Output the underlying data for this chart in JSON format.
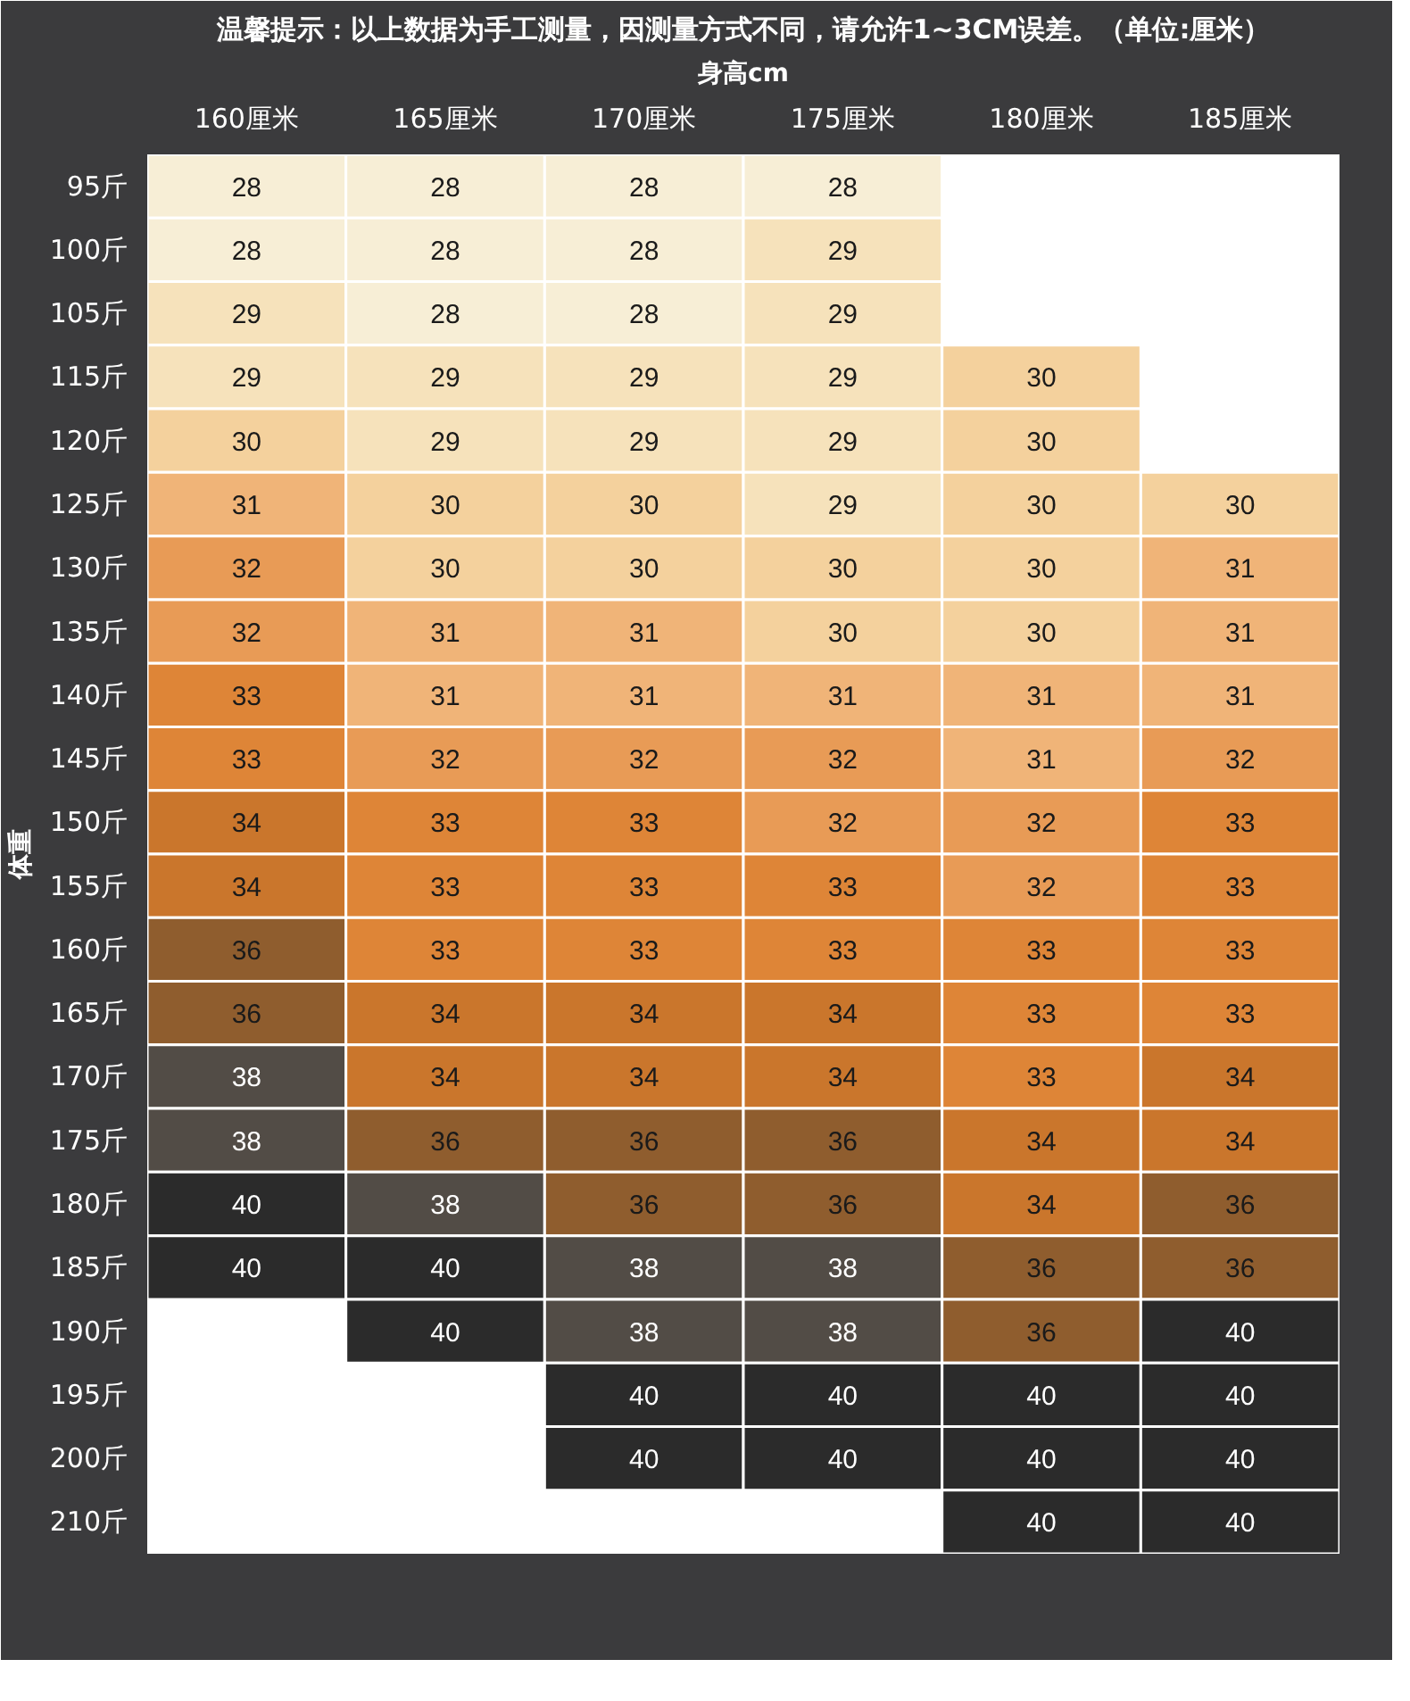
{
  "chart_data": {
    "type": "heatmap",
    "title": "温馨提示：以上数据为手工测量，因测量方式不同，请允许1~3CM误差。（单位:厘米）",
    "xlabel": "身高cm",
    "ylabel": "体重",
    "data_labels": true,
    "categories": [
      "160厘米",
      "165厘米",
      "170厘米",
      "175厘米",
      "180厘米",
      "185厘米"
    ],
    "y_categories": [
      "95斤",
      "100斤",
      "105斤",
      "115斤",
      "120斤",
      "125斤",
      "130斤",
      "135斤",
      "140斤",
      "145斤",
      "150斤",
      "155斤",
      "160斤",
      "165斤",
      "170斤",
      "175斤",
      "180斤",
      "185斤",
      "190斤",
      "195斤",
      "200斤",
      "210斤"
    ],
    "cells": [
      [
        28,
        28,
        28,
        28,
        null,
        null
      ],
      [
        28,
        28,
        28,
        29,
        null,
        null
      ],
      [
        29,
        28,
        28,
        29,
        null,
        null
      ],
      [
        29,
        29,
        29,
        29,
        30,
        null
      ],
      [
        30,
        29,
        29,
        29,
        30,
        null
      ],
      [
        31,
        30,
        30,
        29,
        30,
        30
      ],
      [
        32,
        30,
        30,
        30,
        30,
        31
      ],
      [
        32,
        31,
        31,
        30,
        30,
        31
      ],
      [
        33,
        31,
        31,
        31,
        31,
        31
      ],
      [
        33,
        32,
        32,
        32,
        31,
        32
      ],
      [
        34,
        33,
        33,
        32,
        32,
        33
      ],
      [
        34,
        33,
        33,
        33,
        32,
        33
      ],
      [
        36,
        33,
        33,
        33,
        33,
        33
      ],
      [
        36,
        34,
        34,
        34,
        33,
        33
      ],
      [
        38,
        34,
        34,
        34,
        33,
        34
      ],
      [
        38,
        36,
        36,
        36,
        34,
        34
      ],
      [
        40,
        38,
        36,
        36,
        34,
        36
      ],
      [
        40,
        40,
        38,
        38,
        36,
        36
      ],
      [
        null,
        40,
        38,
        38,
        36,
        40
      ],
      [
        null,
        null,
        40,
        40,
        40,
        40
      ],
      [
        null,
        null,
        40,
        40,
        40,
        40
      ],
      [
        null,
        null,
        null,
        null,
        40,
        40
      ]
    ]
  }
}
